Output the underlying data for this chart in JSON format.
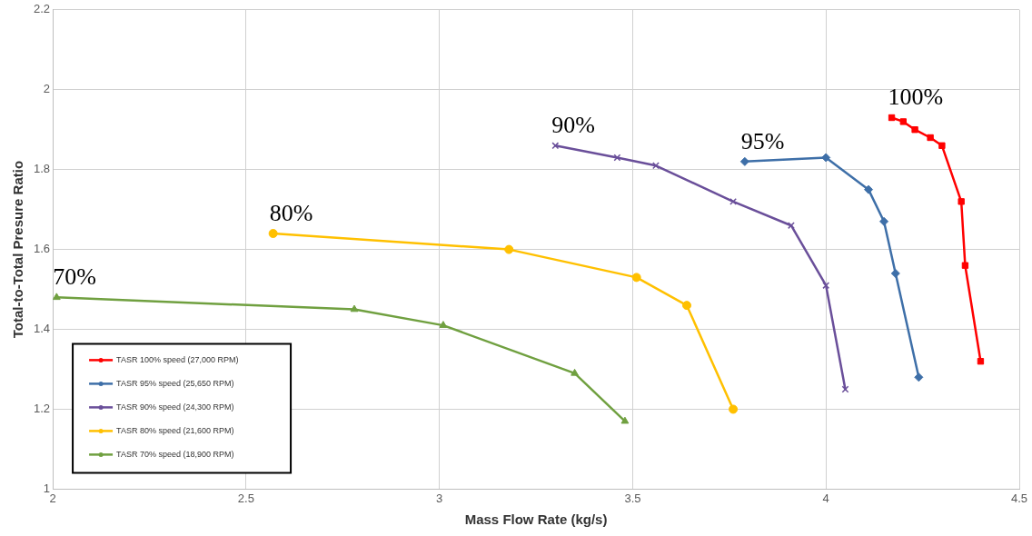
{
  "chart_data": {
    "type": "line",
    "xlabel": "Mass Flow Rate (kg/s)",
    "ylabel": "Total-to-Total Presure Ratio",
    "xlim": [
      2,
      4.5
    ],
    "xticks": [
      2,
      2.5,
      3,
      3.5,
      4,
      4.5
    ],
    "ylim": [
      1,
      2.2
    ],
    "yticks": [
      1,
      1.2,
      1.4,
      1.6,
      1.8,
      2,
      2.2
    ],
    "grid": true,
    "legend": "bottom left",
    "line_style": "solid",
    "series": [
      {
        "name": "TASR 100% speed (27,000 RPM)",
        "color": "#ff0000",
        "marker": "square",
        "x": [
          4.17,
          4.2,
          4.23,
          4.27,
          4.3,
          4.35,
          4.36,
          4.4
        ],
        "values": [
          1.93,
          1.92,
          1.9,
          1.88,
          1.86,
          1.72,
          1.56,
          1.32
        ]
      },
      {
        "name": "TASR 95% speed (25,650 RPM)",
        "color": "#3e6fa8",
        "marker": "diamond",
        "x": [
          3.79,
          4.0,
          4.11,
          4.15,
          4.18,
          4.24
        ],
        "values": [
          1.82,
          1.83,
          1.75,
          1.67,
          1.54,
          1.28
        ]
      },
      {
        "name": "TASR 90% speed (24,300 RPM)",
        "color": "#6a4f9a",
        "marker": "cross",
        "x": [
          3.3,
          3.46,
          3.56,
          3.76,
          3.91,
          4.0,
          4.05
        ],
        "values": [
          1.86,
          1.83,
          1.81,
          1.72,
          1.66,
          1.51,
          1.25
        ]
      },
      {
        "name": "TASR 80% speed (21,600 RPM)",
        "color": "#ffc000",
        "marker": "circle",
        "x": [
          2.57,
          3.18,
          3.51,
          3.64,
          3.76
        ],
        "values": [
          1.64,
          1.6,
          1.53,
          1.46,
          1.2
        ]
      },
      {
        "name": "TASR 70% speed (18,900 RPM)",
        "color": "#70a040",
        "marker": "triangle",
        "x": [
          2.01,
          2.78,
          3.01,
          3.35,
          3.48
        ],
        "values": [
          1.48,
          1.45,
          1.41,
          1.29,
          1.17
        ]
      }
    ],
    "annotations": [
      {
        "text": "100%",
        "x": 4.17,
        "y": 1.93
      },
      {
        "text": "95%",
        "x": 3.79,
        "y": 1.82
      },
      {
        "text": "90%",
        "x": 3.3,
        "y": 1.86
      },
      {
        "text": "80%",
        "x": 2.57,
        "y": 1.64
      },
      {
        "text": "70%",
        "x": 2.01,
        "y": 1.48
      }
    ]
  }
}
